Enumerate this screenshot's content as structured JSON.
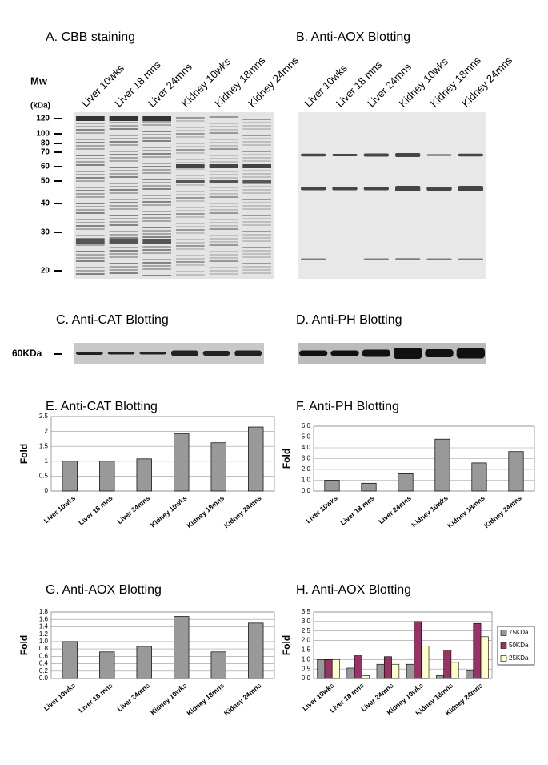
{
  "figure": {
    "panel_a": {
      "title": "A. CBB staining",
      "mw_title": "Mw",
      "mw_unit": "(kDa)",
      "markers": [
        120,
        100,
        80,
        70,
        60,
        50,
        40,
        30,
        20
      ],
      "lanes": [
        "Liver 10wks",
        "Liver 18 mns",
        "Liver 24mns",
        "Kidney 10wks",
        "Kidney 18mns",
        "Kidney 24mns"
      ]
    },
    "panel_b": {
      "title": "B. Anti-AOX Blotting",
      "lanes": [
        "Liver 10wks",
        "Liver 18 mns",
        "Liver 24mns",
        "Kidney 10wks",
        "Kidney 18mns",
        "Kidney 24mns"
      ]
    },
    "panel_c": {
      "title": "C. Anti-CAT Blotting",
      "marker": "60KDa"
    },
    "panel_d": {
      "title": "D. Anti-PH Blotting"
    }
  },
  "chart_data": [
    {
      "type": "bar",
      "title": "E. Anti-CAT Blotting",
      "y_label": "Fold",
      "categories": [
        "Liver 10wks",
        "Liver 18 mns",
        "Liver 24mns",
        "Kidney 10wks",
        "Kidney 18mns",
        "Kidney 24mns"
      ],
      "values": [
        1,
        1,
        1.08,
        1.93,
        1.62,
        2.15
      ],
      "color": "#999999",
      "ylim": [
        0,
        2.5
      ],
      "yticks": [
        0,
        0.5,
        1,
        1.5,
        2,
        2.5
      ],
      "grid": true
    },
    {
      "type": "bar",
      "title": "F. Anti-PH Blotting",
      "y_label": "Fold",
      "categories": [
        "Liver 10wks",
        "Liver 18 mns",
        "Liver 24mns",
        "Kidney 10wks",
        "Kidney 18mns",
        "Kidney 24mns"
      ],
      "values": [
        1.0,
        0.72,
        1.6,
        4.8,
        2.6,
        3.65
      ],
      "color": "#999999",
      "ylim": [
        0,
        6
      ],
      "yticks": [
        {
          "value": 0,
          "label": "0.0"
        },
        {
          "value": 1,
          "label": "1.0"
        },
        {
          "value": 2,
          "label": "2.0"
        },
        {
          "value": 3,
          "label": "3.0"
        },
        {
          "value": 4,
          "label": "4.0"
        },
        {
          "value": 5,
          "label": "5.0"
        },
        {
          "value": 6,
          "label": "6.0"
        }
      ],
      "grid": true
    },
    {
      "type": "bar",
      "title": "G. Anti-AOX Blotting",
      "y_label": "Fold",
      "categories": [
        "Liver 10wks",
        "Liver 18 mns",
        "Liver 24mns",
        "Kidney 10wks",
        "Kidney 18mns",
        "Kidney 24mns"
      ],
      "values": [
        1.0,
        0.72,
        0.87,
        1.68,
        0.72,
        1.5
      ],
      "color": "#999999",
      "ylim": [
        0,
        1.8
      ],
      "yticks": [
        {
          "value": 0,
          "label": "0.0"
        },
        {
          "value": 0.2,
          "label": "0.2"
        },
        {
          "value": 0.4,
          "label": "0.4"
        },
        {
          "value": 0.6,
          "label": "0.6"
        },
        {
          "value": 0.8,
          "label": "0.8"
        },
        {
          "value": 1,
          "label": "1.0"
        },
        {
          "value": 1.2,
          "label": "1.2"
        },
        {
          "value": 1.4,
          "label": "1.4"
        },
        {
          "value": 1.6,
          "label": "1.6"
        },
        {
          "value": 1.8,
          "label": "1.8"
        }
      ],
      "grid": true
    },
    {
      "type": "grouped_bar",
      "title": "H. Anti-AOX Blotting",
      "y_label": "Fold",
      "categories": [
        "Liver 10wks",
        "Liver 18 mns",
        "Liver 24mns",
        "Kidney 10wks",
        "Kidney 18mns",
        "Kidney 24mns"
      ],
      "series": [
        {
          "name": "75KDa",
          "color": "#999999",
          "values": [
            1.0,
            0.55,
            0.75,
            0.75,
            0.15,
            0.4
          ]
        },
        {
          "name": "50KDa",
          "color": "#993366",
          "values": [
            1.0,
            1.2,
            1.15,
            3.0,
            1.5,
            2.9
          ]
        },
        {
          "name": "25KDa",
          "color": "#ffffcc",
          "values": [
            1.0,
            0.15,
            0.75,
            1.7,
            0.85,
            2.2
          ]
        }
      ],
      "ylim": [
        0,
        3.5
      ],
      "yticks": [
        {
          "value": 0,
          "label": "0.0"
        },
        {
          "value": 0.5,
          "label": "0.5"
        },
        {
          "value": 1,
          "label": "1.0"
        },
        {
          "value": 1.5,
          "label": "1.5"
        },
        {
          "value": 2,
          "label": "2.0"
        },
        {
          "value": 2.5,
          "label": "2.5"
        },
        {
          "value": 3,
          "label": "3.0"
        },
        {
          "value": 3.5,
          "label": "3.5"
        }
      ],
      "grid": true,
      "legend": "right"
    }
  ]
}
